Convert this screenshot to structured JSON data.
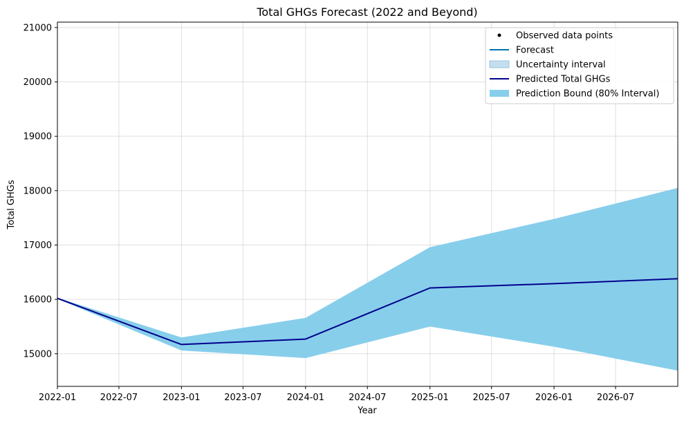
{
  "chart_data": {
    "type": "area",
    "title": "Total GHGs Forecast (2022 and Beyond)",
    "xlabel": "Year",
    "ylabel": "Total GHGs",
    "x_ticks": [
      "2022-01",
      "2022-07",
      "2023-01",
      "2023-07",
      "2024-01",
      "2024-07",
      "2025-01",
      "2025-07",
      "2026-01",
      "2026-07"
    ],
    "y_ticks": [
      15000,
      16000,
      17000,
      18000,
      19000,
      20000,
      21000
    ],
    "xlim": [
      "2022-01-01",
      "2026-12-31"
    ],
    "ylim": [
      14400,
      21100
    ],
    "grid": true,
    "legend_position": "top-right",
    "legend": [
      {
        "label": "Observed data points",
        "kind": "marker",
        "color": "#000000"
      },
      {
        "label": "Forecast",
        "kind": "line",
        "color": "#0072B2"
      },
      {
        "label": "Uncertainty interval",
        "kind": "patch",
        "color": "#C3DEEE"
      },
      {
        "label": "Predicted Total GHGs",
        "kind": "line",
        "color": "#00008B"
      },
      {
        "label": "Prediction Bound (80% Interval)",
        "kind": "patch",
        "color": "#87CEEB"
      }
    ],
    "series": [
      {
        "name": "Predicted Total GHGs",
        "color": "#00008B",
        "x": [
          "2022-01-01",
          "2023-01-01",
          "2024-01-01",
          "2025-01-01",
          "2026-01-01",
          "2026-12-31"
        ],
        "values": [
          16020,
          15170,
          15270,
          16210,
          16290,
          16380
        ]
      }
    ],
    "bound": {
      "name": "Prediction Bound (80% Interval)",
      "color": "#87CEEB",
      "x": [
        "2022-01-01",
        "2023-01-01",
        "2024-01-01",
        "2025-01-01",
        "2026-01-01",
        "2026-12-31"
      ],
      "lower": [
        16010,
        15060,
        14920,
        15500,
        15130,
        14690
      ],
      "upper": [
        16030,
        15300,
        15660,
        16960,
        17480,
        18050
      ]
    }
  }
}
